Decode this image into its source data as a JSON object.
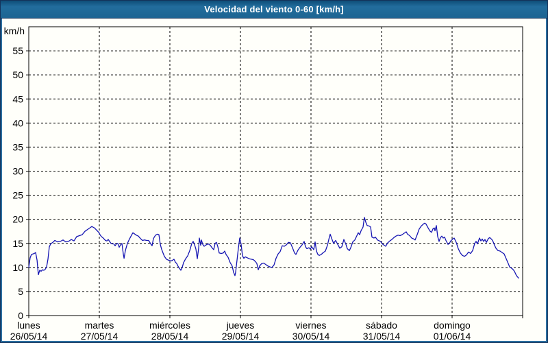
{
  "window": {
    "title": "Velocidad del viento 0-60 [km/h]"
  },
  "colors": {
    "titlebar_blue": "#1e6a9a",
    "frame_navy": "#14325a",
    "frame_blue": "#2a6e9e",
    "background": "#fffffa",
    "series_line": "#1515b2",
    "grid": "#000000"
  },
  "chart_data": {
    "type": "line",
    "title": "Velocidad del viento 0-60 [km/h]",
    "ylabel": "km/h",
    "xlabel": "",
    "ylim": [
      0,
      60
    ],
    "yticks": [
      0,
      5,
      10,
      15,
      20,
      25,
      30,
      35,
      40,
      45,
      50,
      55
    ],
    "xlim_days": [
      0,
      7
    ],
    "grid": "dashed",
    "legend_position": "none",
    "x_axis_days": [
      {
        "name": "lunes",
        "date": "26/05/14"
      },
      {
        "name": "martes",
        "date": "27/05/14"
      },
      {
        "name": "miércoles",
        "date": "28/05/14"
      },
      {
        "name": "jueves",
        "date": "29/05/14"
      },
      {
        "name": "viernes",
        "date": "30/05/14"
      },
      {
        "name": "sábado",
        "date": "31/05/14"
      },
      {
        "name": "domingo",
        "date": "01/06/14"
      }
    ],
    "series": [
      {
        "name": "Velocidad del viento [km/h]",
        "color": "#1515b2",
        "points": [
          [
            0,
            10
          ],
          [
            0.019,
            12
          ],
          [
            0.039,
            12.7
          ],
          [
            0.058,
            12.8
          ],
          [
            0.078,
            12.9
          ],
          [
            0.097,
            13.1
          ],
          [
            0.117,
            11.5
          ],
          [
            0.136,
            8.5
          ],
          [
            0.155,
            9.4
          ],
          [
            0.175,
            9.2
          ],
          [
            0.194,
            9.5
          ],
          [
            0.214,
            9.4
          ],
          [
            0.233,
            9.6
          ],
          [
            0.252,
            10.1
          ],
          [
            0.272,
            11.7
          ],
          [
            0.291,
            14.3
          ],
          [
            0.311,
            14.9
          ],
          [
            0.33,
            15.1
          ],
          [
            0.35,
            15.3
          ],
          [
            0.369,
            15.6
          ],
          [
            0.408,
            15.3
          ],
          [
            0.447,
            15.4
          ],
          [
            0.485,
            15.7
          ],
          [
            0.524,
            15.3
          ],
          [
            0.563,
            15.4
          ],
          [
            0.602,
            15.8
          ],
          [
            0.641,
            15.5
          ],
          [
            0.68,
            16.4
          ],
          [
            0.718,
            16.6
          ],
          [
            0.757,
            16.8
          ],
          [
            0.796,
            17.5
          ],
          [
            0.835,
            17.9
          ],
          [
            0.874,
            18.3
          ],
          [
            0.893,
            18.5
          ],
          [
            0.932,
            18.2
          ],
          [
            0.971,
            17.6
          ],
          [
            0.99,
            17.3
          ],
          [
            1.01,
            16.8
          ],
          [
            1.029,
            16.4
          ],
          [
            1.049,
            16.2
          ],
          [
            1.068,
            15.9
          ],
          [
            1.087,
            15.6
          ],
          [
            1.107,
            15.5
          ],
          [
            1.126,
            15.8
          ],
          [
            1.146,
            15.4
          ],
          [
            1.165,
            15
          ],
          [
            1.184,
            14.9
          ],
          [
            1.204,
            14.9
          ],
          [
            1.223,
            14.5
          ],
          [
            1.243,
            14.9
          ],
          [
            1.262,
            15
          ],
          [
            1.282,
            14.2
          ],
          [
            1.301,
            14.7
          ],
          [
            1.32,
            15
          ],
          [
            1.34,
            12.8
          ],
          [
            1.35,
            11.9
          ],
          [
            1.369,
            13.5
          ],
          [
            1.398,
            15
          ],
          [
            1.427,
            15.9
          ],
          [
            1.456,
            16.7
          ],
          [
            1.476,
            17.2
          ],
          [
            1.495,
            17
          ],
          [
            1.524,
            16.7
          ],
          [
            1.553,
            16.5
          ],
          [
            1.583,
            16
          ],
          [
            1.612,
            15.6
          ],
          [
            1.641,
            15.7
          ],
          [
            1.67,
            15.6
          ],
          [
            1.699,
            15.6
          ],
          [
            1.728,
            14.9
          ],
          [
            1.748,
            14.5
          ],
          [
            1.767,
            16
          ],
          [
            1.796,
            16.7
          ],
          [
            1.825,
            16.9
          ],
          [
            1.845,
            16.8
          ],
          [
            1.864,
            14.8
          ],
          [
            1.883,
            13.8
          ],
          [
            1.903,
            13
          ],
          [
            1.922,
            12.3
          ],
          [
            1.951,
            11.7
          ],
          [
            1.981,
            11.5
          ],
          [
            2,
            11.4
          ],
          [
            2.029,
            11.4
          ],
          [
            2.058,
            11.7
          ],
          [
            2.078,
            11.1
          ],
          [
            2.097,
            10.8
          ],
          [
            2.117,
            10.2
          ],
          [
            2.136,
            9.8
          ],
          [
            2.155,
            9.4
          ],
          [
            2.175,
            10
          ],
          [
            2.194,
            11
          ],
          [
            2.223,
            11.8
          ],
          [
            2.252,
            12.4
          ],
          [
            2.282,
            13.5
          ],
          [
            2.311,
            15
          ],
          [
            2.33,
            15.4
          ],
          [
            2.35,
            14.7
          ],
          [
            2.369,
            13.8
          ],
          [
            2.388,
            11.8
          ],
          [
            2.408,
            14
          ],
          [
            2.417,
            16.1
          ],
          [
            2.437,
            14.6
          ],
          [
            2.447,
            15.7
          ],
          [
            2.466,
            14.8
          ],
          [
            2.485,
            14.4
          ],
          [
            2.515,
            14.7
          ],
          [
            2.544,
            14.9
          ],
          [
            2.573,
            14.6
          ],
          [
            2.602,
            14
          ],
          [
            2.621,
            13.7
          ],
          [
            2.641,
            15
          ],
          [
            2.66,
            15.2
          ],
          [
            2.68,
            14.3
          ],
          [
            2.699,
            13
          ],
          [
            2.728,
            12.9
          ],
          [
            2.757,
            13
          ],
          [
            2.777,
            13.4
          ],
          [
            2.796,
            12.7
          ],
          [
            2.825,
            12.1
          ],
          [
            2.854,
            11
          ],
          [
            2.883,
            10.3
          ],
          [
            2.903,
            9
          ],
          [
            2.922,
            8.3
          ],
          [
            2.932,
            9
          ],
          [
            2.951,
            11.5
          ],
          [
            2.971,
            14
          ],
          [
            2.99,
            16.1
          ],
          [
            3.01,
            14.8
          ],
          [
            3.029,
            12.4
          ],
          [
            3.049,
            11.9
          ],
          [
            3.068,
            12.2
          ],
          [
            3.097,
            12
          ],
          [
            3.126,
            11.8
          ],
          [
            3.155,
            11.7
          ],
          [
            3.184,
            11.6
          ],
          [
            3.214,
            11.2
          ],
          [
            3.233,
            10.8
          ],
          [
            3.252,
            9.5
          ],
          [
            3.272,
            10.3
          ],
          [
            3.301,
            10.8
          ],
          [
            3.33,
            10.9
          ],
          [
            3.359,
            10.6
          ],
          [
            3.388,
            10.3
          ],
          [
            3.417,
            10.1
          ],
          [
            3.447,
            10
          ],
          [
            3.476,
            10.5
          ],
          [
            3.505,
            11.9
          ],
          [
            3.534,
            12.8
          ],
          [
            3.563,
            13.3
          ],
          [
            3.592,
            14.5
          ],
          [
            3.621,
            14.4
          ],
          [
            3.65,
            14.7
          ],
          [
            3.68,
            15.2
          ],
          [
            3.709,
            15.1
          ],
          [
            3.738,
            14.1
          ],
          [
            3.767,
            13
          ],
          [
            3.786,
            12.7
          ],
          [
            3.816,
            13.6
          ],
          [
            3.845,
            14.2
          ],
          [
            3.874,
            14.7
          ],
          [
            3.903,
            15.4
          ],
          [
            3.922,
            14.3
          ],
          [
            3.942,
            13.9
          ],
          [
            3.971,
            14.1
          ],
          [
            3.99,
            13.8
          ],
          [
            4.01,
            14.3
          ],
          [
            4.039,
            13.7
          ],
          [
            4.058,
            15.3
          ],
          [
            4.078,
            13.4
          ],
          [
            4.097,
            12.7
          ],
          [
            4.117,
            12.5
          ],
          [
            4.146,
            12.7
          ],
          [
            4.175,
            13.1
          ],
          [
            4.204,
            13.4
          ],
          [
            4.233,
            14.6
          ],
          [
            4.252,
            15.8
          ],
          [
            4.272,
            16.9
          ],
          [
            4.301,
            15.7
          ],
          [
            4.32,
            15
          ],
          [
            4.35,
            15.6
          ],
          [
            4.379,
            14.8
          ],
          [
            4.408,
            14
          ],
          [
            4.437,
            14.3
          ],
          [
            4.466,
            15.8
          ],
          [
            4.495,
            14.8
          ],
          [
            4.515,
            13.9
          ],
          [
            4.544,
            13.5
          ],
          [
            4.563,
            14.1
          ],
          [
            4.592,
            15.3
          ],
          [
            4.621,
            15.7
          ],
          [
            4.65,
            16.6
          ],
          [
            4.67,
            17.2
          ],
          [
            4.689,
            16.8
          ],
          [
            4.709,
            17.6
          ],
          [
            4.738,
            18.4
          ],
          [
            4.757,
            20.4
          ],
          [
            4.777,
            19.4
          ],
          [
            4.796,
            18.7
          ],
          [
            4.825,
            18.6
          ],
          [
            4.845,
            18.4
          ],
          [
            4.864,
            16.3
          ],
          [
            4.893,
            16.1
          ],
          [
            4.913,
            16.3
          ],
          [
            4.942,
            15.7
          ],
          [
            4.971,
            15.5
          ],
          [
            4.99,
            15.3
          ],
          [
            5.01,
            14.9
          ],
          [
            5.039,
            14.6
          ],
          [
            5.058,
            14.4
          ],
          [
            5.087,
            15.1
          ],
          [
            5.117,
            15.5
          ],
          [
            5.146,
            15.8
          ],
          [
            5.175,
            16.2
          ],
          [
            5.204,
            16.5
          ],
          [
            5.233,
            16.7
          ],
          [
            5.262,
            16.6
          ],
          [
            5.291,
            16.8
          ],
          [
            5.32,
            17.1
          ],
          [
            5.35,
            17.4
          ],
          [
            5.369,
            16.9
          ],
          [
            5.398,
            16.6
          ],
          [
            5.427,
            16.1
          ],
          [
            5.456,
            15.9
          ],
          [
            5.476,
            15.7
          ],
          [
            5.505,
            16.8
          ],
          [
            5.534,
            18
          ],
          [
            5.563,
            18.6
          ],
          [
            5.592,
            19
          ],
          [
            5.612,
            19.2
          ],
          [
            5.631,
            19
          ],
          [
            5.66,
            18.2
          ],
          [
            5.689,
            17.5
          ],
          [
            5.709,
            17.3
          ],
          [
            5.728,
            18
          ],
          [
            5.748,
            18.2
          ],
          [
            5.757,
            17.6
          ],
          [
            5.777,
            18.7
          ],
          [
            5.796,
            16.4
          ],
          [
            5.816,
            15.4
          ],
          [
            5.835,
            16.2
          ],
          [
            5.854,
            16.5
          ],
          [
            5.874,
            16.1
          ],
          [
            5.893,
            16.3
          ],
          [
            5.913,
            15.6
          ],
          [
            5.942,
            14.8
          ],
          [
            5.961,
            15
          ],
          [
            5.981,
            15.5
          ],
          [
            6.01,
            15.9
          ],
          [
            6.029,
            16.1
          ],
          [
            6.058,
            15.2
          ],
          [
            6.087,
            13.9
          ],
          [
            6.117,
            13
          ],
          [
            6.146,
            12.5
          ],
          [
            6.175,
            12.3
          ],
          [
            6.204,
            12.6
          ],
          [
            6.233,
            13.2
          ],
          [
            6.262,
            12.9
          ],
          [
            6.291,
            13.5
          ],
          [
            6.32,
            15
          ],
          [
            6.34,
            15.4
          ],
          [
            6.359,
            14.9
          ],
          [
            6.388,
            16.1
          ],
          [
            6.408,
            15.5
          ],
          [
            6.427,
            15.9
          ],
          [
            6.447,
            15.4
          ],
          [
            6.466,
            15.8
          ],
          [
            6.485,
            15.2
          ],
          [
            6.515,
            16
          ],
          [
            6.534,
            16.2
          ],
          [
            6.563,
            15.8
          ],
          [
            6.583,
            15.3
          ],
          [
            6.602,
            14.6
          ],
          [
            6.621,
            14
          ],
          [
            6.65,
            13.5
          ],
          [
            6.68,
            13.4
          ],
          [
            6.709,
            13.1
          ],
          [
            6.738,
            12.8
          ],
          [
            6.767,
            11.8
          ],
          [
            6.796,
            10.8
          ],
          [
            6.816,
            10.1
          ],
          [
            6.835,
            9.9
          ],
          [
            6.854,
            9.7
          ],
          [
            6.874,
            9.4
          ],
          [
            6.893,
            8.9
          ],
          [
            6.913,
            8.3
          ],
          [
            6.942,
            7.8
          ]
        ]
      }
    ]
  }
}
